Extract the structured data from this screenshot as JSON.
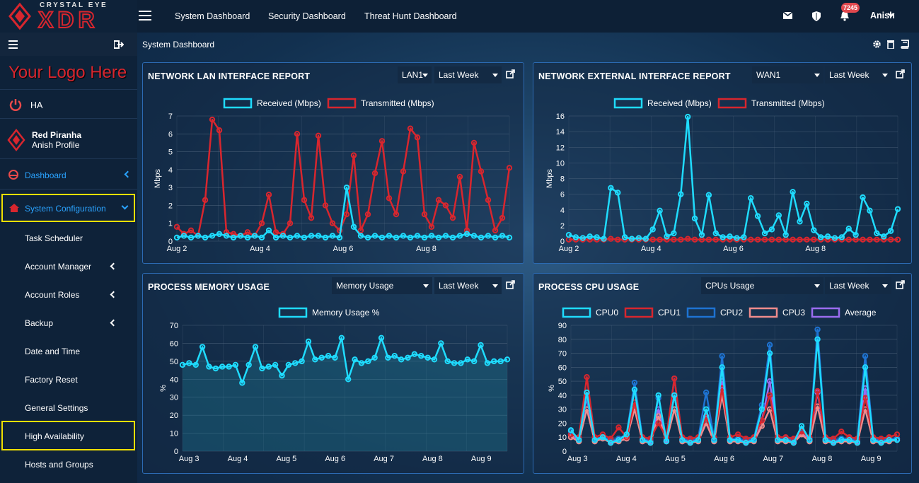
{
  "brand": {
    "top": "CRYSTAL EYE",
    "main": "XDR"
  },
  "sidebar": {
    "logo_text": "Your Logo Here",
    "ha_label": "HA",
    "company": "Red Piranha",
    "profile": "Anish Profile",
    "dashboard": "Dashboard",
    "system_configuration": "System Configuration",
    "items": [
      "Task Scheduler",
      "Account Manager",
      "Account Roles",
      "Backup",
      "Date and Time",
      "Factory Reset",
      "General Settings",
      "High Availability",
      "Hosts and Groups"
    ]
  },
  "topbar": {
    "nav": [
      "System Dashboard",
      "Security Dashboard",
      "Threat Hunt Dashboard"
    ],
    "notification_count": "7245",
    "user": "Anish"
  },
  "page": {
    "title": "System Dashboard"
  },
  "panels": {
    "lan": {
      "title": "NETWORK LAN INTERFACE REPORT",
      "iface": "LAN1",
      "range": "Last Week"
    },
    "ext": {
      "title": "NETWORK EXTERNAL INTERFACE REPORT",
      "iface": "WAN1",
      "range": "Last Week"
    },
    "mem": {
      "title": "PROCESS MEMORY USAGE",
      "metric": "Memory Usage",
      "range": "Last Week"
    },
    "cpu": {
      "title": "PROCESS CPU USAGE",
      "metric": "CPUs Usage",
      "range": "Last Week"
    }
  },
  "colors": {
    "accent": "#1fdcff",
    "red": "#d8262e",
    "cpu2": "#1e73d2",
    "cpu3": "#f08c8c",
    "avg": "#9a6cf0",
    "highlight": "#f0e000",
    "blue_link": "#2aa3ff"
  },
  "chart_data": [
    {
      "id": "lan",
      "type": "line",
      "title": "NETWORK LAN INTERFACE REPORT",
      "ylabel": "Mbps",
      "ylim": [
        0,
        7
      ],
      "yticks": [
        0,
        1,
        2,
        3,
        4,
        5,
        6,
        7
      ],
      "xticks": [
        "Aug 2",
        "Aug 4",
        "Aug 6",
        "Aug 8"
      ],
      "series": [
        {
          "name": "Received (Mbps)",
          "color": "#1fdcff",
          "values": [
            0.2,
            0.3,
            0.2,
            0.3,
            0.2,
            0.3,
            0.4,
            0.3,
            0.2,
            0.3,
            0.2,
            0.3,
            0.2,
            0.6,
            0.2,
            0.3,
            0.2,
            0.3,
            0.2,
            0.3,
            0.3,
            0.2,
            0.3,
            0.2,
            3.0,
            0.8,
            0.3,
            0.2,
            0.3,
            0.2,
            0.3,
            0.2,
            0.3,
            0.2,
            0.3,
            0.2,
            0.3,
            0.2,
            0.3,
            0.2,
            0.3,
            0.4,
            0.3,
            0.2,
            0.3,
            0.2,
            0.3,
            0.2
          ]
        },
        {
          "name": "Transmitted (Mbps)",
          "color": "#d8262e",
          "values": [
            0.8,
            0.4,
            0.6,
            0.3,
            2.3,
            6.8,
            6.2,
            0.5,
            0.4,
            0.3,
            0.5,
            0.3,
            1.0,
            2.6,
            0.5,
            0.4,
            1.0,
            6.0,
            2.3,
            1.3,
            5.9,
            2.0,
            1.0,
            0.6,
            1.5,
            4.8,
            0.6,
            1.5,
            3.8,
            5.6,
            2.4,
            1.5,
            3.9,
            6.3,
            5.8,
            1.5,
            0.8,
            2.3,
            2.0,
            1.3,
            3.6,
            0.6,
            5.5,
            3.9,
            2.3,
            0.6,
            1.3,
            4.1
          ]
        }
      ]
    },
    {
      "id": "ext",
      "type": "line",
      "title": "NETWORK EXTERNAL INTERFACE REPORT",
      "ylabel": "Mbps",
      "ylim": [
        0,
        16
      ],
      "yticks": [
        0,
        2,
        4,
        6,
        8,
        10,
        12,
        14,
        16
      ],
      "xticks": [
        "Aug 2",
        "Aug 4",
        "Aug 6",
        "Aug 8"
      ],
      "series": [
        {
          "name": "Received (Mbps)",
          "color": "#1fdcff",
          "values": [
            0.8,
            0.5,
            0.4,
            0.6,
            0.5,
            0.3,
            6.8,
            6.2,
            0.5,
            0.3,
            0.4,
            0.3,
            1.5,
            3.9,
            0.6,
            1.0,
            6.0,
            15.9,
            2.9,
            0.8,
            5.9,
            1.0,
            0.5,
            0.6,
            0.4,
            0.5,
            5.5,
            3.2,
            1.0,
            1.5,
            3.3,
            0.8,
            6.3,
            2.5,
            4.8,
            1.4,
            0.5,
            0.6,
            0.4,
            0.5,
            1.6,
            0.8,
            5.6,
            3.9,
            1.0,
            0.6,
            1.3,
            4.1
          ]
        },
        {
          "name": "Transmitted (Mbps)",
          "color": "#d8262e",
          "values": [
            0.2,
            0.2,
            0.2,
            0.2,
            0.2,
            0.2,
            0.3,
            0.2,
            0.2,
            0.2,
            0.2,
            0.2,
            0.2,
            0.2,
            0.2,
            0.2,
            0.2,
            0.3,
            0.2,
            0.2,
            0.2,
            0.2,
            0.2,
            0.2,
            0.2,
            0.2,
            0.2,
            0.2,
            0.2,
            0.2,
            0.2,
            0.2,
            0.2,
            0.2,
            0.2,
            0.2,
            0.2,
            0.2,
            0.2,
            0.2,
            0.2,
            0.2,
            0.2,
            0.2,
            0.2,
            0.2,
            0.2,
            0.2
          ]
        }
      ]
    },
    {
      "id": "mem",
      "type": "area",
      "title": "PROCESS MEMORY USAGE",
      "ylabel": "%",
      "ylim": [
        0,
        70
      ],
      "yticks": [
        0,
        10,
        20,
        30,
        40,
        50,
        60,
        70
      ],
      "xticks": [
        "Aug 3",
        "Aug 4",
        "Aug 5",
        "Aug 6",
        "Aug 7",
        "Aug 8",
        "Aug 9"
      ],
      "series": [
        {
          "name": "Memory Usage %",
          "color": "#1fdcff",
          "values": [
            48,
            49,
            48,
            58,
            47,
            46,
            47,
            47,
            48,
            38,
            48,
            58,
            46,
            47,
            48,
            42,
            48,
            49,
            50,
            61,
            51,
            52,
            53,
            52,
            63,
            40,
            51,
            49,
            50,
            52,
            63,
            52,
            53,
            51,
            52,
            54,
            53,
            52,
            51,
            60,
            50,
            49,
            49,
            51,
            50,
            59,
            49,
            50,
            50,
            51
          ]
        }
      ]
    },
    {
      "id": "cpu",
      "type": "line",
      "title": "PROCESS CPU USAGE",
      "ylabel": "%",
      "ylim": [
        0,
        90
      ],
      "yticks": [
        0,
        10,
        20,
        30,
        40,
        50,
        60,
        70,
        80,
        90
      ],
      "xticks": [
        "Aug 3",
        "Aug 4",
        "Aug 5",
        "Aug 6",
        "Aug 7",
        "Aug 8",
        "Aug 9"
      ],
      "series": [
        {
          "name": "CPU0",
          "color": "#1fdcff",
          "values": [
            15,
            8,
            42,
            8,
            10,
            6,
            8,
            12,
            44,
            8,
            6,
            40,
            7,
            40,
            8,
            6,
            8,
            30,
            8,
            60,
            8,
            8,
            6,
            8,
            30,
            70,
            8,
            8,
            6,
            18,
            8,
            80,
            8,
            6,
            8,
            8,
            6,
            60,
            8,
            6,
            8,
            8
          ]
        },
        {
          "name": "CPU1",
          "color": "#d8262e",
          "values": [
            12,
            10,
            53,
            10,
            12,
            9,
            17,
            10,
            35,
            10,
            9,
            20,
            10,
            52,
            10,
            9,
            10,
            24,
            10,
            45,
            10,
            12,
            9,
            10,
            22,
            40,
            10,
            10,
            9,
            14,
            10,
            43,
            10,
            9,
            14,
            10,
            9,
            38,
            10,
            9,
            10,
            12
          ]
        },
        {
          "name": "CPU2",
          "color": "#1e73d2",
          "values": [
            14,
            9,
            40,
            9,
            10,
            8,
            9,
            12,
            49,
            9,
            8,
            38,
            9,
            52,
            9,
            8,
            9,
            42,
            9,
            68,
            9,
            9,
            8,
            9,
            33,
            76,
            9,
            9,
            8,
            16,
            9,
            87,
            9,
            8,
            9,
            9,
            8,
            68,
            9,
            8,
            9,
            9
          ]
        },
        {
          "name": "CPU3",
          "color": "#f08c8c",
          "values": [
            10,
            7,
            30,
            7,
            9,
            6,
            7,
            9,
            30,
            7,
            6,
            25,
            7,
            30,
            7,
            6,
            7,
            20,
            7,
            40,
            7,
            7,
            6,
            7,
            18,
            30,
            7,
            7,
            6,
            12,
            7,
            32,
            7,
            6,
            7,
            7,
            6,
            30,
            7,
            6,
            7,
            8
          ]
        },
        {
          "name": "Average",
          "color": "#9a6cf0",
          "values": [
            12,
            8,
            38,
            8,
            10,
            7,
            9,
            10,
            35,
            8,
            7,
            30,
            8,
            40,
            8,
            7,
            8,
            25,
            8,
            50,
            8,
            8,
            7,
            8,
            22,
            50,
            8,
            8,
            7,
            14,
            8,
            42,
            8,
            7,
            8,
            8,
            7,
            45,
            8,
            7,
            8,
            9
          ]
        }
      ]
    }
  ]
}
